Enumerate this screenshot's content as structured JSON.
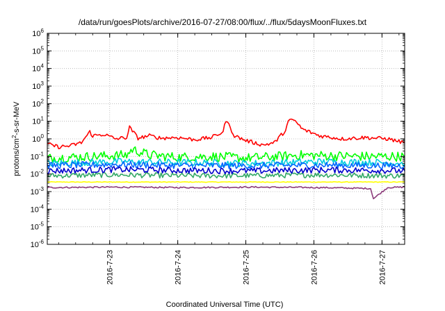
{
  "chart_data": {
    "type": "line",
    "title": "/data/run/goesPlots/archive/2016-07-27/08:00/flux/../flux/5daysMoonFluxes.txt",
    "xlabel": "Coordinated Universal Time (UTC)",
    "ylabel": "protons/cm2-s-sr-MeV",
    "ylabel_parts": {
      "base": "protons/cm",
      "sup": "2",
      "rest": "-s-sr-MeV"
    },
    "yscale": "log",
    "ylim": [
      1e-06,
      1000000.0
    ],
    "y_ticks": [
      {
        "base": "10",
        "exp": "6",
        "value": 1000000.0
      },
      {
        "base": "10",
        "exp": "5",
        "value": 100000.0
      },
      {
        "base": "10",
        "exp": "4",
        "value": 10000.0
      },
      {
        "base": "10",
        "exp": "3",
        "value": 1000.0
      },
      {
        "base": "10",
        "exp": "2",
        "value": 100.0
      },
      {
        "base": "10",
        "exp": "1",
        "value": 10.0
      },
      {
        "base": "10",
        "exp": "0",
        "value": 1.0
      },
      {
        "base": "10",
        "exp": "-1",
        "value": 0.1
      },
      {
        "base": "10",
        "exp": "-2",
        "value": 0.01
      },
      {
        "base": "10",
        "exp": "-3",
        "value": 0.001
      },
      {
        "base": "10",
        "exp": "-4",
        "value": 0.0001
      },
      {
        "base": "10",
        "exp": "-5",
        "value": 1e-05
      },
      {
        "base": "10",
        "exp": "-6",
        "value": 1e-06
      }
    ],
    "xlim": [
      "2016-07-22 02:00",
      "2016-07-27 08:00"
    ],
    "x_ticks": [
      "2016-7-23",
      "2016-7-24",
      "2016-7-25",
      "2016-7-26",
      "2016-7-27"
    ],
    "grid": true,
    "series": [
      {
        "color": "#ff0000",
        "x": [
          "2016-07-22 02:00",
          "2016-07-22 06:00",
          "2016-07-22 10:00",
          "2016-07-22 14:00",
          "2016-07-22 17:00",
          "2016-07-22 18:00",
          "2016-07-22 22:00",
          "2016-07-23 02:00",
          "2016-07-23 06:00",
          "2016-07-23 07:00",
          "2016-07-23 10:00",
          "2016-07-23 14:00",
          "2016-07-23 18:00",
          "2016-07-24 00:00",
          "2016-07-24 06:00",
          "2016-07-24 12:00",
          "2016-07-24 16:00",
          "2016-07-24 17:00",
          "2016-07-24 20:00",
          "2016-07-25 00:00",
          "2016-07-25 06:00",
          "2016-07-25 10:00",
          "2016-07-25 14:00",
          "2016-07-25 15:00",
          "2016-07-25 17:00",
          "2016-07-25 20:00",
          "2016-07-26 02:00",
          "2016-07-26 10:00",
          "2016-07-26 18:00",
          "2016-07-27 02:00",
          "2016-07-27 08:00"
        ],
        "values": [
          0.5,
          0.35,
          0.4,
          0.6,
          2.5,
          1.5,
          1.8,
          1.0,
          1.2,
          4.5,
          1.1,
          1.5,
          1.1,
          1.2,
          0.9,
          1.2,
          2.5,
          12,
          1.5,
          0.8,
          0.45,
          0.6,
          3.0,
          10,
          12,
          3.5,
          1.5,
          1.0,
          1.2,
          1.0,
          0.6
        ]
      },
      {
        "color": "#00ff00",
        "x": [
          "2016-07-22 02:00",
          "2016-07-22 18:00",
          "2016-07-23 06:00",
          "2016-07-23 08:00",
          "2016-07-23 14:00",
          "2016-07-24 00:00",
          "2016-07-24 12:00",
          "2016-07-25 00:00",
          "2016-07-25 12:00",
          "2016-07-25 18:00",
          "2016-07-26 06:00",
          "2016-07-26 18:00",
          "2016-07-27 08:00"
        ],
        "values": [
          0.08,
          0.1,
          0.12,
          0.25,
          0.12,
          0.09,
          0.1,
          0.08,
          0.1,
          0.12,
          0.11,
          0.1,
          0.1
        ]
      },
      {
        "color": "#00ccdd",
        "x": [
          "2016-07-22 02:00",
          "2016-07-23 02:00",
          "2016-07-24 02:00",
          "2016-07-25 02:00",
          "2016-07-26 02:00",
          "2016-07-27 02:00",
          "2016-07-27 08:00"
        ],
        "values": [
          0.04,
          0.05,
          0.045,
          0.04,
          0.05,
          0.045,
          0.04
        ]
      },
      {
        "color": "#0066ff",
        "x": [
          "2016-07-22 02:00",
          "2016-07-23 02:00",
          "2016-07-24 02:00",
          "2016-07-25 02:00",
          "2016-07-26 02:00",
          "2016-07-27 02:00",
          "2016-07-27 08:00"
        ],
        "values": [
          0.03,
          0.035,
          0.03,
          0.03,
          0.032,
          0.03,
          0.03
        ]
      },
      {
        "color": "#0000cc",
        "x": [
          "2016-07-22 02:00",
          "2016-07-23 02:00",
          "2016-07-24 02:00",
          "2016-07-25 02:00",
          "2016-07-26 02:00",
          "2016-07-27 02:00",
          "2016-07-27 08:00"
        ],
        "values": [
          0.015,
          0.018,
          0.016,
          0.015,
          0.017,
          0.016,
          0.015
        ]
      },
      {
        "color": "#33aa66",
        "x": [
          "2016-07-22 02:00",
          "2016-07-23 02:00",
          "2016-07-24 02:00",
          "2016-07-25 02:00",
          "2016-07-26 02:00",
          "2016-07-27 02:00",
          "2016-07-27 08:00"
        ],
        "values": [
          0.008,
          0.009,
          0.008,
          0.008,
          0.009,
          0.008,
          0.008
        ]
      },
      {
        "color": "#ffff00",
        "x": [
          "2016-07-22 02:00",
          "2016-07-23 02:00",
          "2016-07-24 02:00",
          "2016-07-25 02:00",
          "2016-07-26 02:00",
          "2016-07-27 02:00",
          "2016-07-27 08:00"
        ],
        "values": [
          0.0035,
          0.0035,
          0.0035,
          0.0035,
          0.0035,
          0.0035,
          0.0035
        ]
      },
      {
        "color": "#8b3a7a",
        "x": [
          "2016-07-22 02:00",
          "2016-07-23 02:00",
          "2016-07-24 02:00",
          "2016-07-25 02:00",
          "2016-07-26 02:00",
          "2016-07-26 20:00",
          "2016-07-26 21:00",
          "2016-07-27 02:00",
          "2016-07-27 08:00"
        ],
        "values": [
          0.0017,
          0.0018,
          0.0017,
          0.0018,
          0.0017,
          0.0015,
          0.0004,
          0.0017,
          0.0018
        ]
      }
    ]
  }
}
